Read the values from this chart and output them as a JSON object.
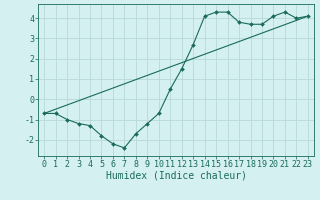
{
  "line1_x": [
    0,
    1,
    2,
    3,
    4,
    5,
    6,
    7,
    8,
    9,
    10,
    11,
    12,
    13,
    14,
    15,
    16,
    17,
    18,
    19,
    20,
    21,
    22,
    23
  ],
  "line1_y": [
    -0.7,
    -0.7,
    -1.0,
    -1.2,
    -1.3,
    -1.8,
    -2.2,
    -2.4,
    -1.7,
    -1.2,
    -0.7,
    0.5,
    1.5,
    2.7,
    4.1,
    4.3,
    4.3,
    3.8,
    3.7,
    3.7,
    4.1,
    4.3,
    4.0,
    4.1
  ],
  "line2_x": [
    0,
    23
  ],
  "line2_y": [
    -0.7,
    4.1
  ],
  "color": "#1a6b5a",
  "bg_color": "#d4f0f0",
  "grid_color": "#b8d8d8",
  "xlabel": "Humidex (Indice chaleur)",
  "ylim": [
    -2.8,
    4.7
  ],
  "xlim": [
    -0.5,
    23.5
  ],
  "yticks": [
    -2,
    -1,
    0,
    1,
    2,
    3,
    4
  ],
  "xticks": [
    0,
    1,
    2,
    3,
    4,
    5,
    6,
    7,
    8,
    9,
    10,
    11,
    12,
    13,
    14,
    15,
    16,
    17,
    18,
    19,
    20,
    21,
    22,
    23
  ],
  "xlabel_fontsize": 7,
  "tick_fontsize": 6,
  "marker_size": 2.0
}
